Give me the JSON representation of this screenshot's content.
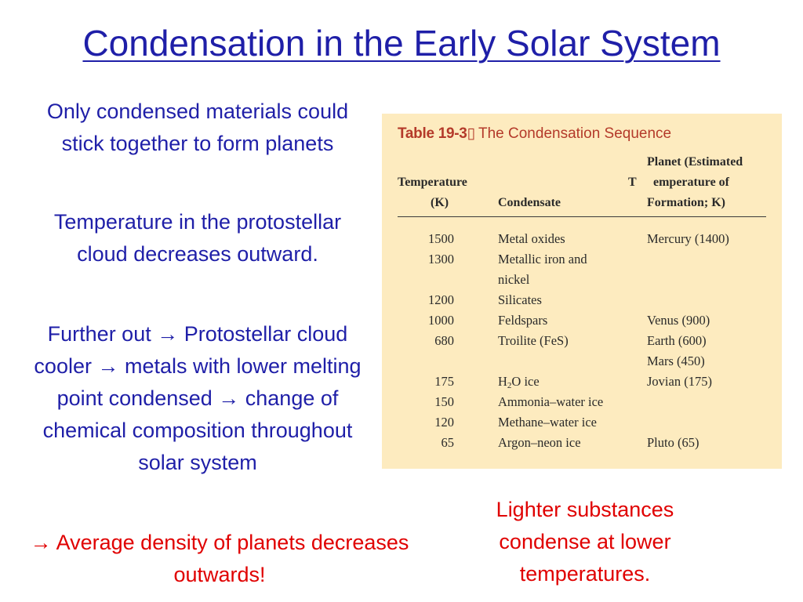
{
  "slide": {
    "title": "Condensation in the Early Solar System",
    "paragraphs": {
      "p1": "Only condensed materials could stick together to form planets",
      "p2": "Temperature in the protostellar cloud decreases outward.",
      "p3": "Further out → Protostellar cloud cooler → metals with lower melting point condensed → change of chemical composition throughout solar system",
      "p4": "→ Average density of planets decreases outwards!",
      "p5": "Lighter substances condense at lower temperatures."
    }
  },
  "table": {
    "number": "Table 19-3",
    "glyph": "▯",
    "caption": "The Condensation Sequence",
    "headers": {
      "temperature_line1": "Temperature",
      "temperature_line2": "(K)",
      "condensate": "Condensate",
      "planet_line1": "Planet (Estimated",
      "planet_t": "T",
      "planet_line2": "emperature of",
      "planet_line3": "Formation; K)"
    },
    "rows": [
      {
        "temp": "1500",
        "condensate": "Metal oxides",
        "planet": "Mercury (1400)"
      },
      {
        "temp": "1300",
        "condensate": "Metallic iron and",
        "planet": ""
      },
      {
        "temp": "",
        "condensate": "nickel",
        "planet": ""
      },
      {
        "temp": "1200",
        "condensate": "Silicates",
        "planet": ""
      },
      {
        "temp": "1000",
        "condensate": "Feldspars",
        "planet": "Venus (900)"
      },
      {
        "temp": "680",
        "condensate": "Troilite (FeS)",
        "planet": "Earth (600)"
      },
      {
        "temp": "",
        "condensate": "",
        "planet": "Mars (450)"
      },
      {
        "temp": "175",
        "condensate_pre": "H",
        "condensate_sub": "2",
        "condensate_post": "O ice",
        "planet": "Jovian (175)"
      },
      {
        "temp": "150",
        "condensate": "Ammonia–water ice",
        "planet": ""
      },
      {
        "temp": "120",
        "condensate": "Methane–water ice",
        "planet": ""
      },
      {
        "temp": "65",
        "condensate": "Argon–neon ice",
        "planet": "Pluto (65)"
      }
    ]
  },
  "colors": {
    "title_blue": "#1f1fa8",
    "accent_red": "#e00000",
    "table_bg": "#fdebbf",
    "table_title": "#b43a2a"
  }
}
